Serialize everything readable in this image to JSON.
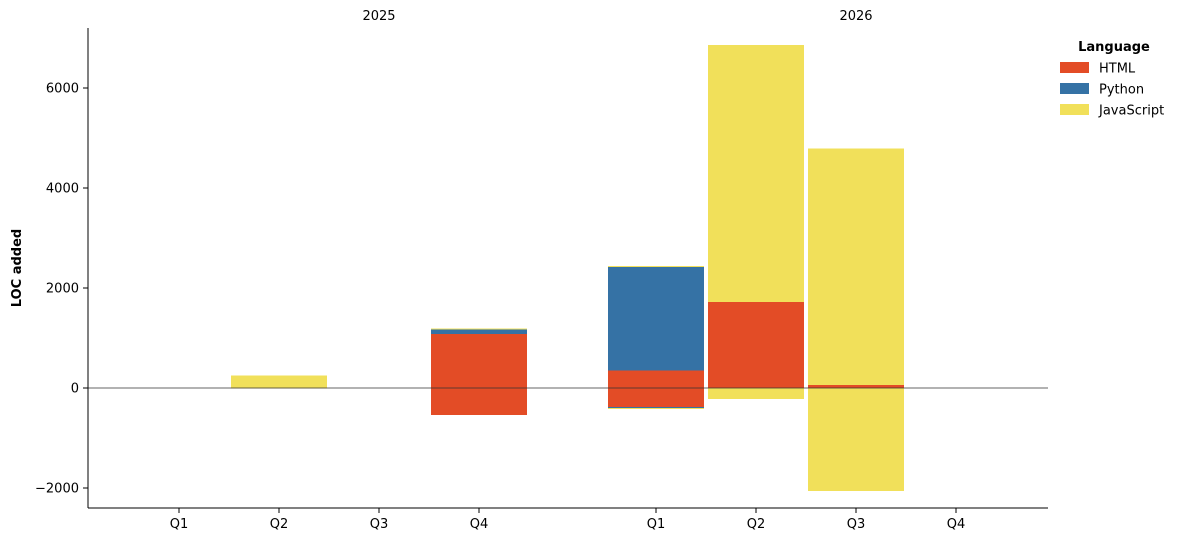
{
  "chart_data": {
    "type": "bar",
    "stacked": true,
    "ylabel": "LOC added",
    "ylim": [
      -2400,
      7200
    ],
    "yticks": [
      -2000,
      0,
      2000,
      4000,
      6000
    ],
    "ytick_labels": [
      "−2000",
      "0",
      "2000",
      "4000",
      "6000"
    ],
    "groups": [
      {
        "label": "2025",
        "categories": [
          "Q1",
          "Q2",
          "Q3",
          "Q4"
        ]
      },
      {
        "label": "2026",
        "categories": [
          "Q1",
          "Q2",
          "Q3",
          "Q4"
        ]
      }
    ],
    "legend": {
      "title": "Language",
      "position": "top-right"
    },
    "series": [
      {
        "name": "HTML",
        "color": "#e34c26",
        "positive": [
          0,
          0,
          0,
          1080,
          350,
          1720,
          60,
          0
        ],
        "negative": [
          0,
          0,
          0,
          -540,
          -380,
          0,
          0,
          0
        ]
      },
      {
        "name": "Python",
        "color": "#3572a5",
        "positive": [
          0,
          0,
          0,
          90,
          2070,
          0,
          0,
          0
        ],
        "negative": [
          0,
          0,
          0,
          0,
          -20,
          0,
          0,
          0
        ]
      },
      {
        "name": "JavaScript",
        "color": "#f1e05a",
        "positive": [
          0,
          250,
          0,
          20,
          20,
          5140,
          4730,
          0
        ],
        "negative": [
          0,
          -10,
          0,
          0,
          -20,
          -220,
          -2060,
          0
        ]
      }
    ]
  }
}
